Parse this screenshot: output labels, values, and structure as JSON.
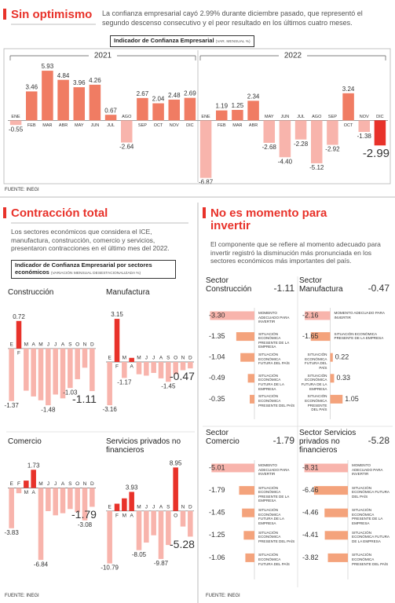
{
  "header": {
    "title": "Sin optimismo",
    "text": "La confianza empresarial cayó 2.99% durante diciembre pasado, que representó el segundo descenso consecutivo y el peor resultado en los últimos cuatro meses.",
    "source": "FUENTE: INEGI"
  },
  "left": {
    "title": "Contracción total",
    "text": "Los sectores económicos que considera el ICE, manufactura, construcción, comercio y servicios, presentaron contracciones en el último mes del 2022.",
    "chart_title": "Indicador de Confianza Empresarial por sectores económicos",
    "chart_unit": "(VARIACIÓN MENSUAL DESESTACIONALIZADA %)",
    "source": "FUENTE: INEGI"
  },
  "right": {
    "title": "No es momento para invertir",
    "text": "El componente que se refiere al momento adecuado para invertir registró la disminución más pronunciada en los sectores económicos más importantes del país.",
    "source": "FUENTE: INEGI"
  },
  "chart_data": [
    {
      "type": "bar",
      "title": "Indicador de Confianza Empresarial",
      "subtitle": "(VAR. MENSUAL %)",
      "groups": [
        "2021",
        "2022"
      ],
      "categories": [
        "ENE",
        "FEB",
        "MAR",
        "ABR",
        "MAY",
        "JUN",
        "JUL",
        "AGO",
        "SEP",
        "OCT",
        "NOV",
        "DIC",
        "ENE",
        "FEB",
        "MAR",
        "ABR",
        "MAY",
        "JUN",
        "JUL",
        "AGO",
        "SEP",
        "OCT",
        "NOV",
        "DIC"
      ],
      "values": [
        -0.55,
        3.46,
        5.93,
        4.84,
        3.96,
        4.26,
        0.67,
        -2.64,
        2.67,
        2.04,
        2.48,
        2.69,
        -6.87,
        1.19,
        1.25,
        2.34,
        -2.68,
        -4.4,
        -2.28,
        -5.12,
        -2.92,
        3.24,
        -1.38,
        -2.99
      ],
      "value_labels": [
        "-0.55",
        "3.46",
        "5.93",
        "4.84",
        "3.96",
        "4.26",
        "0.67",
        "-2.64",
        "2.67",
        "2.04",
        "2.48",
        "2.69",
        "-6.87",
        "1.19",
        "1.25",
        "2.34",
        "-2.68",
        "-4.40",
        "-2.28",
        "-5.12",
        "-2.92",
        "3.24",
        "-1.38",
        "-2.99"
      ],
      "colors": [
        "#f8b4ac",
        "#f07c63",
        "#f07c63",
        "#f07c63",
        "#f07c63",
        "#f07c63",
        "#f07c63",
        "#f8b4ac",
        "#f07c63",
        "#f07c63",
        "#f07c63",
        "#f07c63",
        "#f8b4ac",
        "#f07c63",
        "#f07c63",
        "#f07c63",
        "#f8b4ac",
        "#f8b4ac",
        "#f8b4ac",
        "#f8b4ac",
        "#f8b4ac",
        "#f07c63",
        "#f8b4ac",
        "#e8322a"
      ],
      "ylim": [
        -7,
        6.5
      ]
    },
    {
      "type": "bar",
      "title": "Construcción",
      "categories": [
        "E",
        "F",
        "M",
        "A",
        "M",
        "J",
        "J",
        "A",
        "S",
        "O",
        "N",
        "D"
      ],
      "values": [
        -1.37,
        0.72,
        -1.1,
        -1.25,
        -1.35,
        -1.48,
        -1.2,
        -1.3,
        -1.03,
        -0.8,
        -0.5,
        -1.11
      ],
      "value_labels": [
        "-1.37",
        "0.72",
        null,
        null,
        null,
        "-1.48",
        null,
        null,
        "-1.03",
        null,
        null,
        "-1.11"
      ],
      "color": "#e8322a",
      "negative_color": "#f8b4ac",
      "ylim": [
        -1.6,
        0.9
      ]
    },
    {
      "type": "bar",
      "title": "Manufactura",
      "categories": [
        "E",
        "F",
        "M",
        "A",
        "M",
        "J",
        "J",
        "A",
        "S",
        "O",
        "N",
        "D"
      ],
      "values": [
        -3.16,
        3.15,
        -1.17,
        0.3,
        -0.9,
        -1.0,
        -0.8,
        -1.2,
        -1.45,
        -0.9,
        -0.6,
        -0.47
      ],
      "value_labels": [
        "-3.16",
        "3.15",
        "-1.17",
        null,
        null,
        null,
        null,
        null,
        "-1.45",
        null,
        null,
        "-0.47"
      ],
      "color": "#e8322a",
      "negative_color": "#f8b4ac",
      "ylim": [
        -3.5,
        3.5
      ]
    },
    {
      "type": "bar",
      "title": "Comercio",
      "categories": [
        "E",
        "F",
        "M",
        "A",
        "M",
        "J",
        "J",
        "A",
        "S",
        "O",
        "N",
        "D"
      ],
      "values": [
        -3.83,
        -0.5,
        0.7,
        1.73,
        -6.84,
        -2.2,
        -2.6,
        -2.4,
        -2.0,
        -2.3,
        -3.08,
        -1.79
      ],
      "value_labels": [
        "-3.83",
        null,
        null,
        "1.73",
        "-6.84",
        null,
        null,
        null,
        null,
        null,
        "-3.08",
        "-1.79"
      ],
      "color": "#e8322a",
      "negative_color": "#f8b4ac",
      "ylim": [
        -7.5,
        2.2
      ]
    },
    {
      "type": "bar",
      "title": "Servicios privados no financieros",
      "categories": [
        "E",
        "F",
        "M",
        "A",
        "M",
        "J",
        "J",
        "A",
        "S",
        "O",
        "N",
        "D"
      ],
      "values": [
        -10.79,
        1.5,
        2.6,
        3.93,
        -8.05,
        -6.5,
        -5.0,
        -9.87,
        -7.0,
        8.95,
        -3.2,
        -5.28
      ],
      "value_labels": [
        "-10.79",
        null,
        null,
        "3.93",
        "-8.05",
        null,
        null,
        "-9.87",
        null,
        "8.95",
        null,
        "-5.28"
      ],
      "color": "#e8322a",
      "negative_color": "#f8b4ac",
      "ylim": [
        -11.5,
        9.5
      ]
    },
    {
      "type": "hbar",
      "title": "Sector Construcción",
      "total": -1.11,
      "categories": [
        "MOMENTO ADECUADO PARA INVERTIR",
        "SITUACIÓN ECONÓMICA PRESENTE DE LA EMPRESA",
        "SITUACIÓN ECONÓMICA FUTURA DEL PAÍS",
        "SITUACIÓN ECONÓMICA FUTURA DE LA EMPRESA",
        "SITUACIÓN ECONÓMICA PRESENTE DEL PAÍS"
      ],
      "values": [
        -3.3,
        -1.35,
        -1.04,
        -0.49,
        -0.35
      ],
      "value_labels": [
        "-3.30",
        "-1.35",
        "-1.04",
        "-0.49",
        "-0.35"
      ],
      "colors": [
        "#f8b4ac",
        "#f4a37c",
        "#f4a37c",
        "#f4a37c",
        "#f4a37c"
      ],
      "xlim": [
        -3.5,
        0
      ]
    },
    {
      "type": "hbar",
      "title": "Sector Manufactura",
      "total": -0.47,
      "categories": [
        "MOMENTO ADECUADO PARA INVERTIR",
        "SITUACIÓN ECONÓMICA PRESENTE DE LA EMPRESA",
        "SITUACIÓN ECONÓMICA FUTURA DEL PAÍS",
        "SITUACIÓN ECONÓMICA FUTURA DE LA EMPRESA",
        "SITUACIÓN ECONÓMICA PRESENTE DEL PAÍS"
      ],
      "values": [
        -2.16,
        -1.65,
        0.22,
        0.33,
        1.05
      ],
      "value_labels": [
        "-2.16",
        "-1.65",
        "0.22",
        "0.33",
        "1.05"
      ],
      "colors": [
        "#f8b4ac",
        "#f4a37c",
        "#f4a37c",
        "#f4a37c",
        "#f4a37c"
      ],
      "xlim": [
        -2.5,
        1.5
      ]
    },
    {
      "type": "hbar",
      "title": "Sector Comercio",
      "total": -1.79,
      "categories": [
        "MOMENTO ADECUADO PARA INVERTIR",
        "SITUACIÓN ECONÓMICA PRESENTE DE LA EMPRESA",
        "SITUACIÓN ECONÓMICA FUTURA DE LA EMPRESA",
        "SITUACIÓN ECONÓMICA PRESENTE DEL PAÍS",
        "SITUACIÓN ECONÓMICA FUTURA DEL PAÍS"
      ],
      "values": [
        -5.01,
        -1.79,
        -1.45,
        -1.25,
        -1.06
      ],
      "value_labels": [
        "-5.01",
        "-1.79",
        "-1.45",
        "-1.25",
        "-1.06"
      ],
      "colors": [
        "#f8b4ac",
        "#f4a37c",
        "#f4a37c",
        "#f4a37c",
        "#f4a37c"
      ],
      "xlim": [
        -5.5,
        0
      ]
    },
    {
      "type": "hbar",
      "title": "Sector Servicios privados no financieros",
      "total": -5.28,
      "categories": [
        "MOMENTO ADECUADO PARA INVERTIR",
        "SITUACIÓN ECONÓMICA FUTURA DEL PAÍS",
        "SITUACIÓN ECONÓMICA PRESENTE DE LA EMPRESA",
        "SITUACIÓN ECONÓMICA FUTURA DE LA EMPRESA",
        "SITUACIÓN ECONÓMICA PRESENTE DEL PAÍS"
      ],
      "values": [
        -8.31,
        -6.46,
        -4.46,
        -4.41,
        -3.82
      ],
      "value_labels": [
        "-8.31",
        "-6.46",
        "-4.46",
        "-4.41",
        "-3.82"
      ],
      "colors": [
        "#f8b4ac",
        "#f4a37c",
        "#f4a37c",
        "#f4a37c",
        "#f4a37c"
      ],
      "xlim": [
        -9,
        0
      ]
    }
  ]
}
